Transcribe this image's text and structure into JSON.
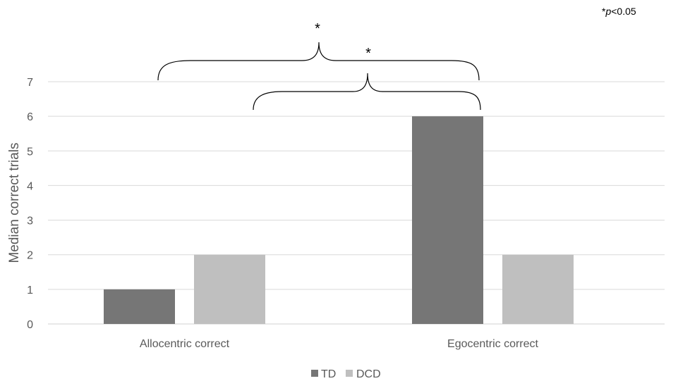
{
  "chart_data": {
    "type": "bar",
    "categories": [
      "Allocentric correct",
      "Egocentric correct"
    ],
    "series": [
      {
        "name": "TD",
        "values": [
          1,
          6
        ],
        "color": "#767676"
      },
      {
        "name": "DCD",
        "values": [
          2,
          2
        ],
        "color": "#bfbfbf"
      }
    ],
    "ylabel": "Median correct trials",
    "ylim": [
      0,
      7
    ],
    "yticks": [
      0,
      1,
      2,
      3,
      4,
      5,
      6,
      7
    ],
    "grid": true,
    "legend_position": "bottom",
    "significance": [
      {
        "marker": "*",
        "between": "TD Allocentric correct vs TD Egocentric correct"
      },
      {
        "marker": "*",
        "between": "DCD Allocentric correct vs TD Egocentric correct"
      }
    ],
    "note": {
      "prefix": "*",
      "italic": "p",
      "suffix": "<0.05"
    }
  }
}
